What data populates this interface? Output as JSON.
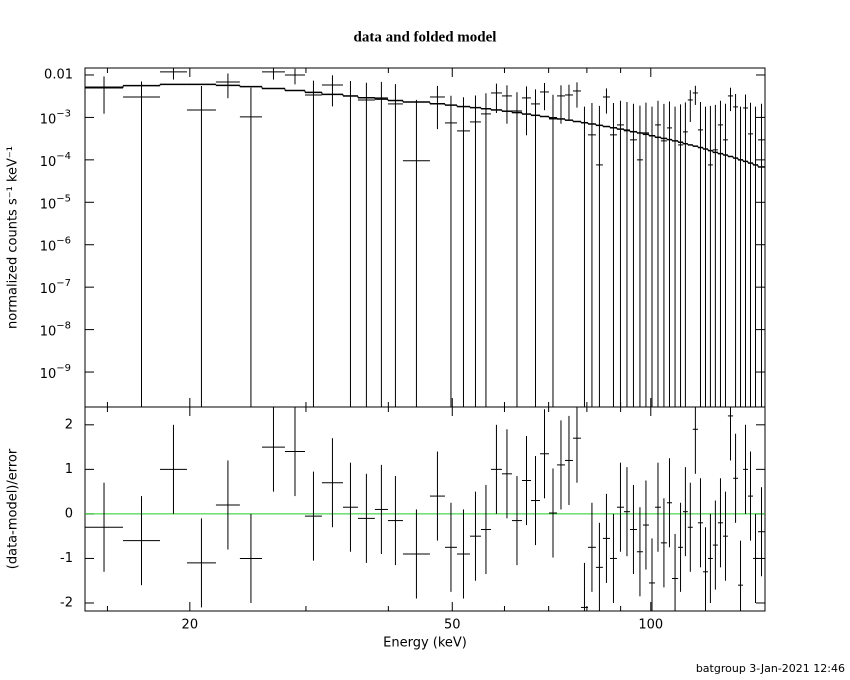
{
  "chart_data": {
    "type": "errorbar",
    "title": "data and folded model",
    "xlabel": "Energy (keV)",
    "log_x": true,
    "xlim": [
      13.87,
      149
    ],
    "xticks": [
      20,
      50,
      100
    ],
    "xminor": [
      15,
      30,
      40,
      60,
      70,
      80,
      90
    ],
    "bins": [
      13.87,
      15.84,
      18.02,
      19.8,
      21.91,
      23.82,
      25.73,
      27.88,
      29.9,
      31.72,
      34.14,
      35.97,
      38.16,
      39.94,
      42.09,
      46.25,
      48.74,
      50.83,
      53.19,
      55.27,
      57.23,
      59.47,
      61.59,
      63.78,
      65.82,
      67.92,
      70.09,
      72.07,
      74.11,
      76.21,
      78.37,
      80.3,
      82.57,
      84.61,
      86.72,
      88.86,
      91.06,
      92.99,
      95.28,
      97.3,
      99.36,
      101.5,
      103.6,
      105.8,
      107.7,
      110,
      111.9,
      113.8,
      115.8,
      117.9,
      120,
      122.1,
      124.2,
      126.4,
      128.7,
      130.9,
      133.3,
      135.6,
      138,
      140.4,
      142.9,
      145.4,
      149
    ],
    "panels": [
      {
        "ylabel": "normalized counts s⁻¹ keV⁻¹",
        "log_y": true,
        "ylim": [
          1.5e-10,
          0.0146
        ],
        "color": "#000000",
        "yticks": [
          0.01,
          {
            "value": 0.001,
            "label": "10",
            "superscript": "−3"
          },
          {
            "value": 0.0001,
            "label": "10",
            "superscript": "−4"
          },
          {
            "value": 1e-05,
            "label": "10",
            "superscript": "−5"
          },
          {
            "value": 1e-06,
            "label": "10",
            "superscript": "−6"
          },
          {
            "value": 1e-07,
            "label": "10",
            "superscript": "−7"
          },
          {
            "value": 1e-08,
            "label": "10",
            "superscript": "−8"
          },
          {
            "value": 1e-09,
            "label": "10",
            "superscript": "−9"
          }
        ],
        "values": [
          0.00522,
          0.00303,
          0.0118,
          0.0015,
          0.00684,
          0.00103,
          0.0118,
          0.01,
          0.00338,
          0.00582,
          0.00321,
          0.00258,
          0.00288,
          0.00208,
          9.5e-05,
          0.00303,
          0.000742,
          0.000481,
          0.000783,
          0.00121,
          0.00377,
          0.00321,
          0.00142,
          0.00288,
          0.00208,
          0.00398,
          0.00092,
          0.00321,
          0.00338,
          0.0042,
          null,
          0.000388,
          7.6e-05,
          0.00303,
          0.000388,
          0.000666,
          0.000508,
          0.000296,
          0.0001,
          0.000432,
          null,
          0.000666,
          0.00028,
          0.000566,
          null,
          0.000225,
          0.000456,
          0.00258,
          0.00377,
          0.000508,
          null,
          7.6e-05,
          0.000172,
          0.000666,
          0.000296,
          0.00321,
          0.00177,
          null,
          0.00167,
          0.000409,
          null,
          0.000296
        ],
        "errors": [
          0.004,
          0.004,
          0.004,
          0.004,
          0.004,
          0.004,
          0.004,
          0.004,
          0.004,
          0.004,
          0.004,
          0.004,
          0.004,
          0.004,
          0.0025,
          0.0025,
          0.0025,
          0.0025,
          0.0025,
          0.0025,
          0.0025,
          0.0025,
          0.0025,
          0.0025,
          0.0025,
          0.0025,
          0.0025,
          0.0025,
          0.0025,
          0.0025,
          0.0018,
          0.0018,
          0.0018,
          0.0018,
          0.0018,
          0.0018,
          0.0018,
          0.0018,
          0.0018,
          0.0018,
          0.0018,
          0.0018,
          0.0018,
          0.0018,
          0.0018,
          0.0018,
          0.0018,
          0.0018,
          0.0018,
          0.0018,
          0.0018,
          0.0018,
          0.0018,
          0.0018,
          0.0018,
          0.0018,
          0.0018,
          0.0018,
          0.0018,
          0.0018,
          0.0018,
          0.0018
        ],
        "model": [
          0.005,
          0.0056,
          0.006,
          0.006,
          0.0057,
          0.0053,
          0.0048,
          0.0043,
          0.0039,
          0.0035,
          0.0032,
          0.0029,
          0.0027,
          0.0025,
          0.0023,
          0.0021,
          0.00195,
          0.0018,
          0.0017,
          0.0016,
          0.0015,
          0.0014,
          0.0013,
          0.0012,
          0.00112,
          0.00105,
          0.00098,
          0.00092,
          0.00086,
          0.0008,
          0.00075,
          0.0007,
          0.00065,
          0.00061,
          0.00057,
          0.00053,
          0.00049,
          0.00046,
          0.00043,
          0.0004,
          0.00037,
          0.00034,
          0.00032,
          0.0003,
          0.00028,
          0.00026,
          0.00024,
          0.000225,
          0.00021,
          0.000195,
          0.00018,
          0.000165,
          0.00015,
          0.00014,
          0.00013,
          0.00012,
          0.00011,
          0.0001,
          9.2e-05,
          8.4e-05,
          7.6e-05,
          6.8e-05
        ]
      },
      {
        "ylabel": "(data-model)/error",
        "log_y": false,
        "ylim": [
          -2.18,
          2.4
        ],
        "yticks": [
          -2,
          -1,
          0,
          1,
          2
        ],
        "color": "#000000",
        "values": [
          -0.3,
          -0.6,
          1.0,
          -1.1,
          0.2,
          -1.0,
          1.5,
          1.4,
          -0.05,
          0.7,
          0.15,
          -0.1,
          0.1,
          -0.15,
          -0.9,
          0.4,
          -0.75,
          -0.9,
          -0.5,
          -0.35,
          1.0,
          0.9,
          -0.15,
          0.75,
          0.3,
          1.35,
          0.02,
          1.1,
          1.2,
          1.7,
          -2.1,
          -0.75,
          -1.2,
          -0.55,
          -1.0,
          0.15,
          0.05,
          -0.35,
          -0.85,
          -0.25,
          -1.55,
          0.15,
          -0.65,
          0.25,
          -1.45,
          -0.75,
          0.05,
          -0.3,
          1.9,
          -0.2,
          -1.3,
          -1.0,
          -0.7,
          -0.2,
          -0.5,
          2.2,
          0.8,
          -1.6,
          1.0,
          0.4,
          -1.0,
          -0.4
        ],
        "yerr": 1,
        "zero_line": 0,
        "zero_color": "#22cc22"
      }
    ],
    "footer": "batgroup  3-Jan-2021 12:46"
  }
}
